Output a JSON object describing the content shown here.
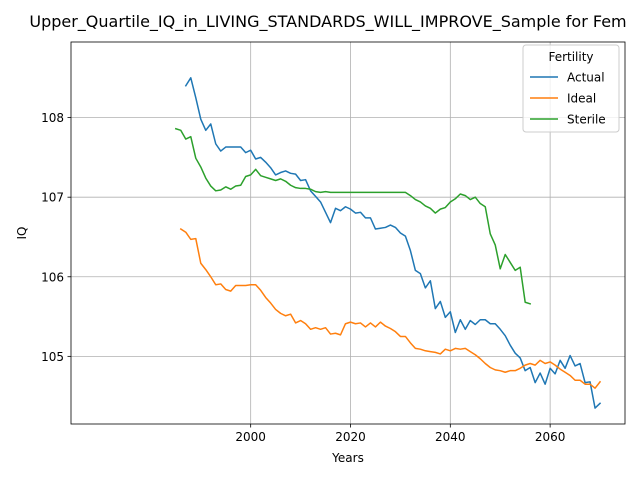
{
  "chart_data": {
    "type": "line",
    "title": "Upper_Quartile_IQ_in_LIVING_STANDARDS_WILL_IMPROVE_Sample for Fem",
    "xlabel": "Years",
    "ylabel": "IQ",
    "xlim": [
      1964,
      2075
    ],
    "ylim": [
      104.15,
      108.95
    ],
    "xticks": [
      2000,
      2020,
      2040,
      2060
    ],
    "yticks": [
      105,
      106,
      107,
      108
    ],
    "grid": true,
    "legend": {
      "title": "Fertility",
      "position": "top-right"
    },
    "series": [
      {
        "name": "Actual",
        "color": "#1f77b4",
        "x": [
          1987,
          1988,
          1989,
          1990,
          1991,
          1992,
          1993,
          1994,
          1995,
          1996,
          1997,
          1998,
          1999,
          2000,
          2001,
          2002,
          2003,
          2004,
          2005,
          2006,
          2007,
          2008,
          2009,
          2010,
          2011,
          2012,
          2013,
          2014,
          2015,
          2016,
          2017,
          2018,
          2019,
          2020,
          2021,
          2022,
          2023,
          2024,
          2025,
          2026,
          2027,
          2028,
          2029,
          2030,
          2031,
          2032,
          2033,
          2034,
          2035,
          2036,
          2037,
          2038,
          2039,
          2040,
          2041,
          2042,
          2043,
          2044,
          2045,
          2046,
          2047,
          2048,
          2049,
          2050,
          2051,
          2052,
          2053,
          2054,
          2055,
          2056,
          2057,
          2058,
          2059,
          2060,
          2061,
          2062,
          2063,
          2064,
          2065,
          2066,
          2067,
          2068,
          2069,
          2070
        ],
        "y": [
          108.4,
          108.5,
          108.25,
          107.98,
          107.84,
          107.92,
          107.67,
          107.58,
          107.63,
          107.63,
          107.63,
          107.63,
          107.56,
          107.59,
          107.48,
          107.5,
          107.44,
          107.37,
          107.28,
          107.31,
          107.33,
          107.3,
          107.29,
          107.21,
          107.22,
          107.08,
          107.01,
          106.94,
          106.81,
          106.68,
          106.86,
          106.83,
          106.88,
          106.85,
          106.8,
          106.81,
          106.74,
          106.74,
          106.6,
          106.61,
          106.62,
          106.65,
          106.62,
          106.55,
          106.51,
          106.33,
          106.08,
          106.04,
          105.86,
          105.95,
          105.6,
          105.69,
          105.49,
          105.56,
          105.3,
          105.46,
          105.34,
          105.45,
          105.4,
          105.46,
          105.46,
          105.41,
          105.41,
          105.34,
          105.26,
          105.14,
          105.04,
          104.98,
          104.82,
          104.86,
          104.67,
          104.79,
          104.65,
          104.85,
          104.78,
          104.95,
          104.85,
          105.01,
          104.88,
          104.91,
          104.67,
          104.68,
          104.35,
          104.41
        ]
      },
      {
        "name": "Ideal",
        "color": "#ff7f0e",
        "x": [
          1986,
          1987,
          1988,
          1989,
          1990,
          1991,
          1992,
          1993,
          1994,
          1995,
          1996,
          1997,
          1998,
          1999,
          2000,
          2001,
          2002,
          2003,
          2004,
          2005,
          2006,
          2007,
          2008,
          2009,
          2010,
          2011,
          2012,
          2013,
          2014,
          2015,
          2016,
          2017,
          2018,
          2019,
          2020,
          2021,
          2022,
          2023,
          2024,
          2025,
          2026,
          2027,
          2028,
          2029,
          2030,
          2031,
          2032,
          2033,
          2034,
          2035,
          2036,
          2037,
          2038,
          2039,
          2040,
          2041,
          2042,
          2043,
          2044,
          2045,
          2046,
          2047,
          2048,
          2049,
          2050,
          2051,
          2052,
          2053,
          2054,
          2055,
          2056,
          2057,
          2058,
          2059,
          2060,
          2061,
          2062,
          2063,
          2064,
          2065,
          2066,
          2067,
          2068,
          2069,
          2070
        ],
        "y": [
          106.6,
          106.56,
          106.47,
          106.48,
          106.17,
          106.09,
          106.0,
          105.9,
          105.91,
          105.84,
          105.82,
          105.89,
          105.89,
          105.89,
          105.9,
          105.9,
          105.83,
          105.74,
          105.67,
          105.59,
          105.54,
          105.51,
          105.53,
          105.42,
          105.45,
          105.41,
          105.34,
          105.36,
          105.34,
          105.36,
          105.28,
          105.29,
          105.27,
          105.41,
          105.43,
          105.41,
          105.42,
          105.37,
          105.42,
          105.37,
          105.43,
          105.38,
          105.35,
          105.31,
          105.25,
          105.25,
          105.17,
          105.1,
          105.09,
          105.07,
          105.06,
          105.05,
          105.03,
          105.09,
          105.07,
          105.1,
          105.09,
          105.1,
          105.06,
          105.02,
          104.97,
          104.91,
          104.86,
          104.83,
          104.82,
          104.8,
          104.82,
          104.82,
          104.85,
          104.89,
          104.91,
          104.89,
          104.95,
          104.91,
          104.93,
          104.89,
          104.84,
          104.8,
          104.76,
          104.7,
          104.7,
          104.65,
          104.65,
          104.6,
          104.68
        ]
      },
      {
        "name": "Sterile",
        "color": "#2ca02c",
        "x": [
          1985,
          1986,
          1987,
          1988,
          1989,
          1990,
          1991,
          1992,
          1993,
          1994,
          1995,
          1996,
          1997,
          1998,
          1999,
          2000,
          2001,
          2002,
          2003,
          2004,
          2005,
          2006,
          2007,
          2008,
          2009,
          2010,
          2011,
          2012,
          2013,
          2014,
          2015,
          2016,
          2017,
          2018,
          2019,
          2020,
          2021,
          2022,
          2023,
          2024,
          2025,
          2026,
          2027,
          2028,
          2029,
          2030,
          2031,
          2032,
          2033,
          2034,
          2035,
          2036,
          2037,
          2038,
          2039,
          2040,
          2041,
          2042,
          2043,
          2044,
          2045,
          2046,
          2047,
          2048,
          2049,
          2050,
          2051,
          2052,
          2053,
          2054,
          2055,
          2056
        ],
        "y": [
          107.86,
          107.84,
          107.73,
          107.76,
          107.49,
          107.38,
          107.24,
          107.14,
          107.08,
          107.09,
          107.13,
          107.1,
          107.14,
          107.15,
          107.26,
          107.28,
          107.35,
          107.27,
          107.25,
          107.23,
          107.21,
          107.23,
          107.2,
          107.15,
          107.12,
          107.11,
          107.11,
          107.1,
          107.07,
          107.06,
          107.07,
          107.06,
          107.06,
          107.06,
          107.06,
          107.06,
          107.06,
          107.06,
          107.06,
          107.06,
          107.06,
          107.06,
          107.06,
          107.06,
          107.06,
          107.06,
          107.06,
          107.02,
          106.97,
          106.94,
          106.89,
          106.86,
          106.8,
          106.85,
          106.87,
          106.94,
          106.98,
          107.04,
          107.02,
          106.97,
          107.0,
          106.92,
          106.88,
          106.54,
          106.4,
          106.1,
          106.28,
          106.18,
          106.08,
          106.12,
          105.68,
          105.66
        ]
      }
    ]
  }
}
